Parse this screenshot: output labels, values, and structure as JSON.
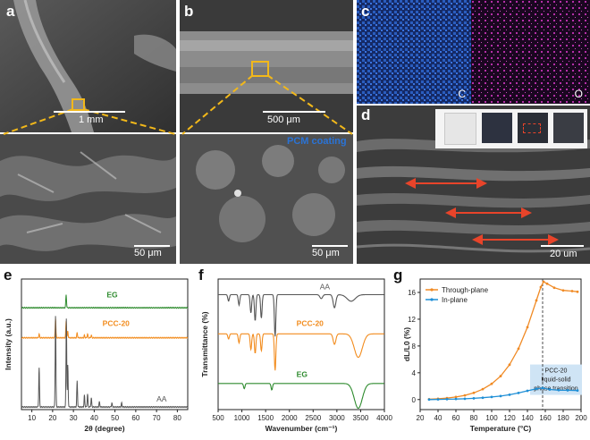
{
  "panel_labels": {
    "a": "a",
    "b": "b",
    "c": "c",
    "d": "d",
    "e": "e",
    "f": "f",
    "g": "g"
  },
  "sem": {
    "a_scale": "1 mm",
    "b_scale": "500 μm",
    "a_zoom_scale": "50 μm",
    "b_zoom_scale": "50 μm",
    "pcm_label": "PCM coating",
    "map_c": "C",
    "map_o": "O",
    "d_scale": "20 um"
  },
  "colors": {
    "zoom_box": "#f2b81a",
    "carbon_map": "#2a5dbf",
    "oxygen_map": "#b52fa8",
    "arrow": "#e8442a",
    "eg_green": "#2e8b2e",
    "pcc_orange": "#f28c1e",
    "aa_gray": "#555555",
    "through_plane": "#f08a24",
    "in_plane": "#1f8fd6"
  },
  "chart_data": [
    {
      "type": "line",
      "panel": "e",
      "xlabel": "2θ (degree)",
      "ylabel": "Intensity (a.u.)",
      "xlim": [
        5,
        85
      ],
      "xticks": [
        10,
        20,
        30,
        40,
        50,
        60,
        70,
        80
      ],
      "series": [
        {
          "name": "EG",
          "offset": 0.78,
          "peaks": [
            [
              26.5,
              0.1
            ]
          ]
        },
        {
          "name": "PCC-20",
          "offset": 0.55,
          "peaks": [
            [
              13.5,
              0.03
            ],
            [
              21.4,
              0.15
            ],
            [
              26.5,
              0.13
            ],
            [
              27.3,
              0.05
            ],
            [
              31.8,
              0.04
            ],
            [
              35.3,
              0.02
            ],
            [
              36.8,
              0.03
            ],
            [
              38.6,
              0.02
            ]
          ]
        },
        {
          "name": "AA",
          "offset": 0.02,
          "peaks": [
            [
              13.5,
              0.3
            ],
            [
              21.4,
              0.7
            ],
            [
              26.6,
              0.68
            ],
            [
              27.3,
              0.32
            ],
            [
              31.8,
              0.2
            ],
            [
              35.3,
              0.09
            ],
            [
              36.8,
              0.1
            ],
            [
              38.6,
              0.07
            ],
            [
              42.5,
              0.04
            ],
            [
              48.5,
              0.03
            ],
            [
              53.2,
              0.03
            ]
          ]
        }
      ]
    },
    {
      "type": "line",
      "panel": "f",
      "xlabel": "Wavenumber (cm⁻¹)",
      "ylabel": "Transmittance (%)",
      "xlim": [
        500,
        4000
      ],
      "xticks": [
        500,
        1000,
        1500,
        2000,
        2500,
        3000,
        3500,
        4000
      ],
      "series": [
        {
          "name": "AA",
          "offset": 0.88,
          "dips": [
            [
              720,
              0.05
            ],
            [
              940,
              0.08
            ],
            [
              1190,
              0.14
            ],
            [
              1280,
              0.2
            ],
            [
              1410,
              0.18
            ],
            [
              1700,
              0.32
            ],
            [
              2670,
              0.03
            ],
            [
              2950,
              0.1
            ],
            [
              3300,
              0.05
            ]
          ]
        },
        {
          "name": "PCC-20",
          "offset": 0.58,
          "dips": [
            [
              720,
              0.04
            ],
            [
              940,
              0.07
            ],
            [
              1190,
              0.12
            ],
            [
              1280,
              0.15
            ],
            [
              1410,
              0.13
            ],
            [
              1700,
              0.28
            ],
            [
              2950,
              0.08
            ],
            [
              3450,
              0.18
            ]
          ]
        },
        {
          "name": "EG",
          "offset": 0.2,
          "dips": [
            [
              1050,
              0.04
            ],
            [
              1630,
              0.05
            ],
            [
              3450,
              0.19
            ]
          ]
        }
      ]
    },
    {
      "type": "line",
      "panel": "g",
      "xlabel": "Temperature (°C)",
      "ylabel": "dL/L0 (%)",
      "xlim": [
        20,
        200
      ],
      "ylim": [
        -1.5,
        18
      ],
      "xticks": [
        20,
        40,
        60,
        80,
        100,
        120,
        140,
        160,
        180,
        200
      ],
      "yticks": [
        0,
        4,
        8,
        12,
        16
      ],
      "legend_position": "top-left",
      "annotation": "PCC-20\nliquid-solid\nphase transition",
      "vline_x": 157,
      "series": [
        {
          "name": "Through-plane",
          "color": "#f08a24",
          "x": [
            30,
            40,
            50,
            60,
            70,
            80,
            90,
            100,
            110,
            120,
            130,
            140,
            150,
            155,
            158,
            162,
            170,
            180,
            190,
            196
          ],
          "y": [
            0.05,
            0.12,
            0.22,
            0.38,
            0.62,
            1.0,
            1.55,
            2.35,
            3.5,
            5.2,
            7.6,
            10.8,
            14.8,
            16.8,
            17.6,
            17.3,
            16.7,
            16.3,
            16.2,
            16.1
          ]
        },
        {
          "name": "In-plane",
          "color": "#1f8fd6",
          "x": [
            30,
            40,
            50,
            60,
            70,
            80,
            90,
            100,
            110,
            120,
            130,
            140,
            150,
            157,
            165,
            175,
            185,
            196
          ],
          "y": [
            0.0,
            0.02,
            0.05,
            0.08,
            0.12,
            0.18,
            0.27,
            0.38,
            0.52,
            0.72,
            0.98,
            1.3,
            1.6,
            1.72,
            1.5,
            1.4,
            1.38,
            1.35
          ]
        }
      ]
    }
  ]
}
